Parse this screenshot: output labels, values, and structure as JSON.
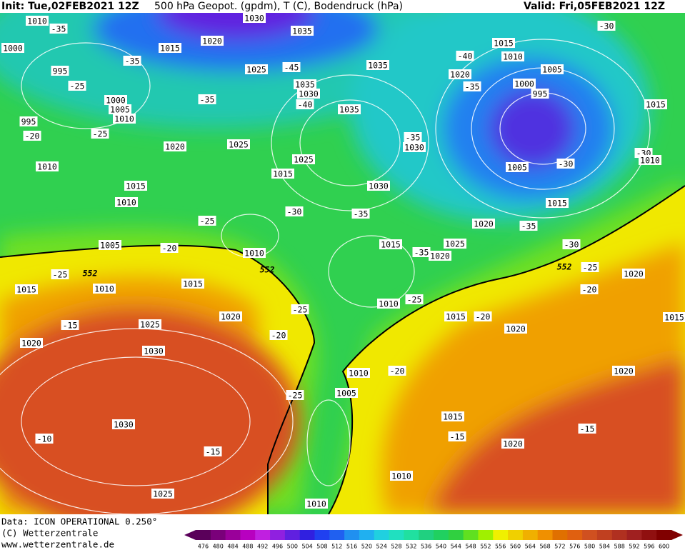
{
  "header": {
    "init": "Init: Tue,02FEB2021 12Z",
    "title": "500 hPa Geopot. (gpdm), T (C), Bodendruck (hPa)",
    "valid": "Valid: Fri,05FEB2021 12Z"
  },
  "footer": {
    "data": "Data: ICON OPERATIONAL 0.250°",
    "copyright": "(C) Wetterzentrale",
    "website": "www.wetterzentrale.de"
  },
  "map_labels": [
    1010,
    -35,
    1030,
    1035,
    1020,
    1015,
    1000,
    -35,
    995,
    1025,
    -45,
    1035,
    -25,
    1035,
    1030,
    -35,
    1000,
    1005,
    1010,
    995,
    -40,
    1035,
    -20,
    -25,
    1020,
    1025,
    -35,
    1030,
    1010,
    1015,
    1010,
    1025,
    1015,
    1030,
    -30,
    -25,
    -35,
    1005,
    -20,
    1010,
    1015,
    1025,
    1020,
    -35,
    -25,
    1015,
    1010,
    1015,
    -25,
    1020,
    1025,
    -15,
    -20,
    1020,
    1030,
    1010,
    -25,
    1015,
    -20,
    1020,
    1010,
    -20,
    1005,
    -25,
    1030,
    -10,
    -15,
    1015,
    -15,
    1020,
    1010,
    1025,
    1010,
    -30,
    1015,
    1010,
    -40,
    1020,
    1005,
    1000,
    995,
    -35,
    1015,
    -30,
    -30,
    1010,
    1005,
    1015,
    1020,
    -35,
    -30,
    -25,
    1020,
    -20,
    1020,
    -15,
    1015
  ],
  "contour_labels": [
    552,
    552,
    552
  ],
  "colorbar": {
    "labels": [
      476,
      480,
      484,
      488,
      492,
      496,
      500,
      504,
      508,
      512,
      516,
      520,
      524,
      528,
      532,
      536,
      540,
      544,
      548,
      552,
      556,
      560,
      564,
      568,
      572,
      576,
      580,
      584,
      588,
      592,
      596,
      600
    ],
    "colors": [
      "#5a005a",
      "#7a007a",
      "#9a009a",
      "#b800c0",
      "#c020e0",
      "#9020e0",
      "#6020e0",
      "#3020e0",
      "#2040f0",
      "#2060f0",
      "#2090f0",
      "#20b0f0",
      "#20d0e0",
      "#20e0c0",
      "#20e0a0",
      "#20d080",
      "#20d060",
      "#30d040",
      "#60e020",
      "#a0f000",
      "#f0f000",
      "#f0d000",
      "#f0b000",
      "#f09000",
      "#e07000",
      "#e06010",
      "#d05020",
      "#c04020",
      "#b03020",
      "#a02020",
      "#901010",
      "#800000"
    ]
  }
}
